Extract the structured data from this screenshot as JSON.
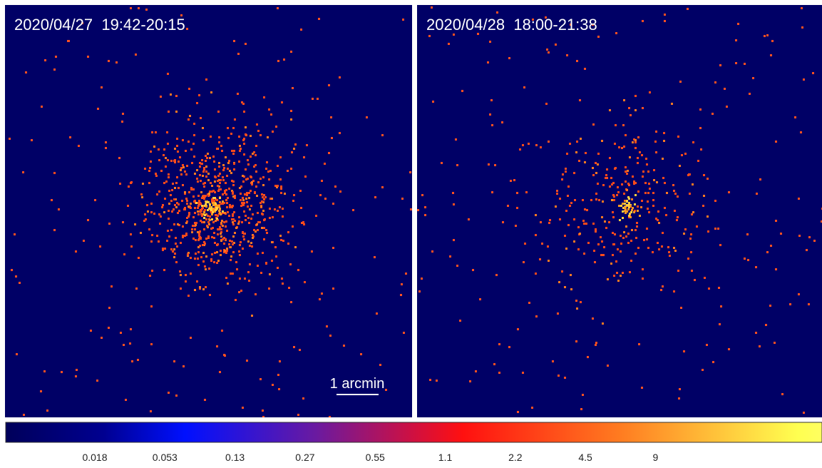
{
  "panels": [
    {
      "title": "2020/04/27  19:42-20:15"
    },
    {
      "title": "2020/04/28  18:00-21:38"
    }
  ],
  "scale_bar": {
    "label": "1 arcmin"
  },
  "colorbar": {
    "ticks": [
      0.018,
      0.053,
      0.13,
      0.27,
      0.55,
      1.1,
      2.2,
      4.5,
      9
    ]
  }
}
